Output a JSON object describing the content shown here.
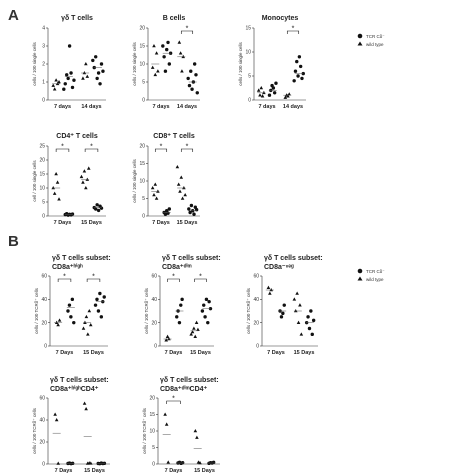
{
  "figure": {
    "panel_labels": [
      "A",
      "B"
    ],
    "legend": {
      "entries": [
        {
          "marker": "circle",
          "label": "TCR Cδ⁻"
        },
        {
          "marker": "triangle",
          "label": "wild type"
        }
      ]
    }
  },
  "chart_data": [
    {
      "type": "scatter",
      "id": "gd-t-cells",
      "panel": "A",
      "title": "γδ T cells",
      "ylabel": "cells / 100 single cells",
      "categories": [
        "7 days",
        "14 days"
      ],
      "ylim": [
        0,
        4
      ],
      "yticks": [
        0,
        1,
        2,
        3,
        4
      ],
      "series": [
        {
          "marker": "triangle",
          "group": [
            0.8,
            0.6,
            1.1,
            0.9,
            1.0
          ]
        },
        {
          "marker": "circle",
          "group": [
            0.6,
            0.9,
            1.4,
            1.2,
            3.0,
            1.5,
            0.7,
            1.1
          ]
        },
        {
          "marker": "triangle",
          "group": [
            1.2,
            1.5,
            2.0,
            1.3
          ]
        },
        {
          "marker": "circle",
          "group": [
            2.2,
            1.8,
            2.4,
            1.2,
            1.5,
            0.9,
            2.0,
            1.6
          ]
        }
      ],
      "means": [
        0.9,
        1.3,
        1.5,
        1.8
      ]
    },
    {
      "type": "scatter",
      "id": "b-cells",
      "panel": "A",
      "title": "B cells",
      "ylabel": "cells / 100 single cells",
      "categories": [
        "7 days",
        "14 days"
      ],
      "ylim": [
        0,
        20
      ],
      "yticks": [
        0,
        5,
        10,
        15,
        20
      ],
      "significance": [
        {
          "from": 2,
          "to": 3,
          "label": "*"
        }
      ],
      "series": [
        {
          "marker": "triangle",
          "group": [
            9,
            15,
            7,
            13,
            8
          ]
        },
        {
          "marker": "circle",
          "group": [
            15,
            12,
            8,
            14,
            16,
            10,
            13
          ]
        },
        {
          "marker": "triangle",
          "group": [
            16,
            13,
            8,
            12
          ]
        },
        {
          "marker": "circle",
          "group": [
            6,
            4,
            8,
            3,
            5,
            10,
            7,
            2
          ]
        }
      ],
      "means": [
        10,
        13,
        12,
        5
      ]
    },
    {
      "type": "scatter",
      "id": "monocytes",
      "panel": "A",
      "title": "Monocytes",
      "ylabel": "cells / 100 single cells",
      "categories": [
        "7 days",
        "14 days"
      ],
      "ylim": [
        0,
        15
      ],
      "yticks": [
        0,
        5,
        10,
        15
      ],
      "significance": [
        {
          "from": 2,
          "to": 3,
          "label": "*"
        }
      ],
      "series": [
        {
          "marker": "triangle",
          "group": [
            2,
            1,
            2.5,
            0.8,
            1.5
          ]
        },
        {
          "marker": "circle",
          "group": [
            1,
            2,
            3,
            2.5,
            1.5,
            3.5
          ]
        },
        {
          "marker": "triangle",
          "group": [
            0.5,
            1,
            0.8,
            1.2
          ]
        },
        {
          "marker": "circle",
          "group": [
            4,
            6,
            8,
            5,
            9,
            7,
            4.5,
            5.5
          ]
        }
      ],
      "means": [
        1.5,
        2,
        1,
        5.5
      ]
    },
    {
      "type": "scatter",
      "id": "cd4-t-cells",
      "panel": "A",
      "title": "CD4⁺ T cells",
      "ylabel": "cell / 100 single cells",
      "categories": [
        "7 Days",
        "15 Days"
      ],
      "ylim": [
        0,
        25
      ],
      "yticks": [
        0,
        5,
        10,
        15,
        20,
        25
      ],
      "significance": [
        {
          "from": 0,
          "to": 1,
          "label": "*"
        },
        {
          "from": 2,
          "to": 3,
          "label": "*"
        }
      ],
      "series": [
        {
          "marker": "triangle",
          "group": [
            10,
            8,
            15,
            12,
            6
          ]
        },
        {
          "marker": "circle",
          "group": [
            0.5,
            0.8,
            0.3,
            0.6,
            0.4,
            0.7
          ]
        },
        {
          "marker": "triangle",
          "group": [
            14,
            12,
            16,
            10,
            13,
            17
          ]
        },
        {
          "marker": "circle",
          "group": [
            3,
            2.5,
            4,
            2,
            3.5,
            2.8
          ]
        }
      ],
      "means": [
        10,
        0.5,
        13,
        3
      ]
    },
    {
      "type": "scatter",
      "id": "cd8-t-cells",
      "panel": "A",
      "title": "CD8⁺ T cells",
      "ylabel": "cells / 100 single cells",
      "categories": [
        "7 Days",
        "15 Days"
      ],
      "ylim": [
        0,
        20
      ],
      "yticks": [
        0,
        5,
        10,
        15,
        20
      ],
      "significance": [
        {
          "from": 0,
          "to": 1,
          "label": "*"
        },
        {
          "from": 2,
          "to": 3,
          "label": "*"
        }
      ],
      "series": [
        {
          "marker": "triangle",
          "group": [
            8,
            6,
            9,
            5,
            7
          ]
        },
        {
          "marker": "circle",
          "group": [
            1,
            0.5,
            1.5,
            0.8,
            2
          ]
        },
        {
          "marker": "triangle",
          "group": [
            14,
            9,
            7,
            11,
            5,
            8,
            6
          ]
        },
        {
          "marker": "circle",
          "group": [
            2,
            1,
            3,
            1.5,
            0.5,
            2.5,
            1.8
          ]
        }
      ],
      "means": [
        7,
        1,
        8,
        1.5
      ]
    },
    {
      "type": "scatter",
      "id": "cd8a-high",
      "panel": "B",
      "title": "γδ T cells subset:",
      "subtitle": "CD8a⁺ʰⁱᵍʰ",
      "ylabel": "cells / 100 TCRδ⁺ cells",
      "categories": [
        "7 Days",
        "15 Days"
      ],
      "ylim": [
        0,
        60
      ],
      "yticks": [
        0,
        20,
        40,
        60
      ],
      "significance": [
        {
          "from": 0,
          "to": 1,
          "label": "*"
        },
        {
          "from": 2,
          "to": 3,
          "label": "*"
        }
      ],
      "series": [
        {
          "marker": "triangle",
          "group": [
            20,
            18,
            22
          ]
        },
        {
          "marker": "circle",
          "group": [
            30,
            35,
            25,
            40,
            20
          ]
        },
        {
          "marker": "triangle",
          "group": [
            15,
            20,
            25,
            10,
            30,
            18
          ]
        },
        {
          "marker": "circle",
          "group": [
            35,
            40,
            30,
            45,
            25,
            38,
            42
          ]
        }
      ],
      "means": [
        20,
        33,
        20,
        38
      ]
    },
    {
      "type": "scatter",
      "id": "cd8a-dim",
      "panel": "B",
      "title": "γδ T cells subset:",
      "subtitle": "CD8a⁺ᵈⁱᵐ",
      "ylabel": "cells / 100 TCRδ⁺ cells",
      "categories": [
        "7 Days",
        "15 Days"
      ],
      "ylim": [
        0,
        60
      ],
      "yticks": [
        0,
        20,
        40,
        60
      ],
      "significance": [
        {
          "from": 0,
          "to": 1,
          "label": "*"
        },
        {
          "from": 2,
          "to": 3,
          "label": "*"
        }
      ],
      "series": [
        {
          "marker": "triangle",
          "group": [
            5,
            8,
            6
          ]
        },
        {
          "marker": "circle",
          "group": [
            25,
            30,
            20,
            35,
            40
          ]
        },
        {
          "marker": "triangle",
          "group": [
            10,
            12,
            15,
            8,
            20,
            14
          ]
        },
        {
          "marker": "circle",
          "group": [
            30,
            35,
            25,
            40,
            20,
            38,
            32
          ]
        }
      ],
      "means": [
        6,
        30,
        13,
        32
      ]
    },
    {
      "type": "scatter",
      "id": "cd8a-neg",
      "panel": "B",
      "title": "γδ T cells subset:",
      "subtitle": "CD8a⁻ⁿᵉᵍ",
      "ylabel": "cells / 100 TCRδ⁺ cells",
      "categories": [
        "7 Days",
        "15 Days"
      ],
      "ylim": [
        0,
        60
      ],
      "yticks": [
        0,
        20,
        40,
        60
      ],
      "series": [
        {
          "marker": "triangle",
          "group": [
            50,
            45,
            48
          ]
        },
        {
          "marker": "circle",
          "group": [
            30,
            25,
            28,
            35
          ]
        },
        {
          "marker": "triangle",
          "group": [
            40,
            30,
            45,
            20,
            35,
            10
          ]
        },
        {
          "marker": "circle",
          "group": [
            20,
            25,
            15,
            30,
            10,
            22
          ]
        }
      ],
      "means": [
        48,
        30,
        30,
        20
      ]
    },
    {
      "type": "scatter",
      "id": "cd8a-high-cd4",
      "panel": "B",
      "title": "γδ T cells subset:",
      "subtitle": "CD8a⁺ʰⁱᵍʰCD4⁺",
      "ylabel": "cells / 100 TCRδ⁺ cells",
      "categories": [
        "7 Days",
        "15 Days"
      ],
      "ylim": [
        0,
        60
      ],
      "yticks": [
        0,
        20,
        40,
        60
      ],
      "series": [
        {
          "marker": "triangle",
          "group": [
            45,
            40,
            0.5
          ]
        },
        {
          "marker": "circle",
          "group": [
            0.5,
            0.8,
            0.3,
            0.6
          ]
        },
        {
          "marker": "triangle",
          "group": [
            55,
            50,
            0.5,
            0.8,
            0.6
          ]
        },
        {
          "marker": "circle",
          "group": [
            0.5,
            0.3,
            0.8,
            0.4,
            0.6
          ]
        }
      ],
      "means": [
        28,
        0.5,
        25,
        0.5
      ]
    },
    {
      "type": "scatter",
      "id": "cd8a-dim-cd4",
      "panel": "B",
      "title": "γδ T cells subset:",
      "subtitle": "CD8a⁺ᵈⁱᵐCD4⁺",
      "ylabel": "cells / 100 TCRδ⁺ cells",
      "categories": [
        "7 Days",
        "15 Days"
      ],
      "ylim": [
        0,
        20
      ],
      "yticks": [
        0,
        5,
        10,
        15,
        20
      ],
      "significance": [
        {
          "from": 0,
          "to": 1,
          "label": "*"
        }
      ],
      "series": [
        {
          "marker": "triangle",
          "group": [
            15,
            12,
            0.5
          ]
        },
        {
          "marker": "circle",
          "group": [
            0.3,
            0.5,
            0.2,
            0.4
          ]
        },
        {
          "marker": "triangle",
          "group": [
            10,
            8,
            0.5,
            0.3
          ]
        },
        {
          "marker": "circle",
          "group": [
            0.2,
            0.4,
            0.3,
            0.5
          ]
        }
      ],
      "means": [
        9,
        0.3,
        4.7,
        0.3
      ]
    }
  ]
}
